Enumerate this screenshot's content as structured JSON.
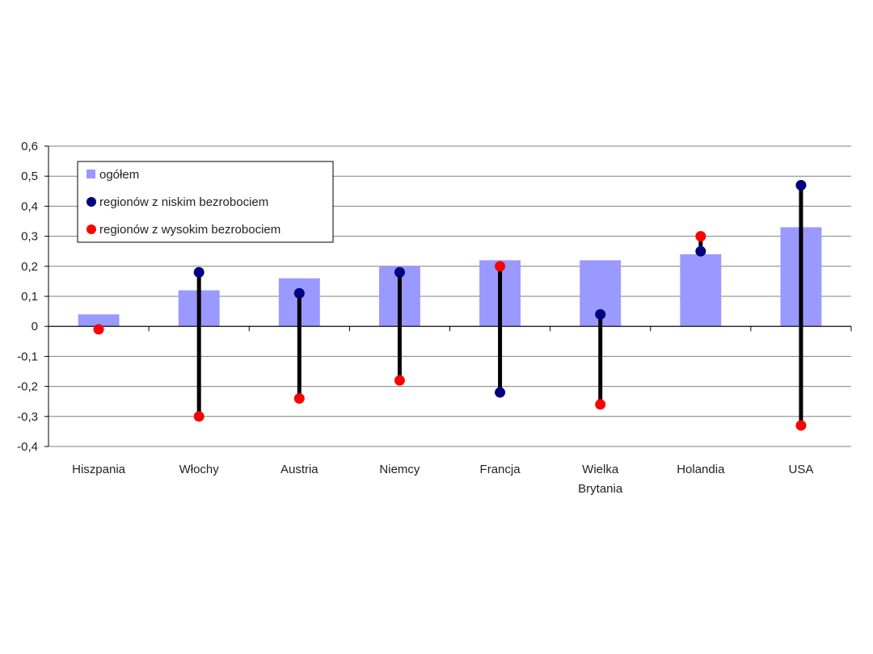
{
  "chart_data": {
    "type": "bar",
    "categories": [
      [
        "Hiszpania"
      ],
      [
        "Włochy"
      ],
      [
        "Austria"
      ],
      [
        "Niemcy"
      ],
      [
        "Francja"
      ],
      [
        "Wielka",
        "Brytania"
      ],
      [
        "Holandia"
      ],
      [
        "USA"
      ]
    ],
    "series": [
      {
        "name": "ogółem",
        "kind": "bar",
        "color": "#9999ff",
        "values": [
          0.04,
          0.12,
          0.16,
          0.2,
          0.22,
          0.22,
          0.24,
          0.33
        ]
      },
      {
        "name": "regionów z niskim bezrobociem",
        "kind": "marker",
        "color": "#000080",
        "values": [
          null,
          0.18,
          0.11,
          0.18,
          -0.22,
          0.04,
          0.25,
          0.47
        ]
      },
      {
        "name": "regionów z wysokim bezrobociem",
        "kind": "marker",
        "color": "#ff0000",
        "values": [
          -0.01,
          -0.3,
          -0.24,
          -0.18,
          0.2,
          -0.26,
          0.3,
          -0.33
        ]
      }
    ],
    "range_lines": {
      "color": "#000000"
    },
    "ylim": [
      -0.4,
      0.6
    ],
    "yticks": [
      0.6,
      0.5,
      0.4,
      0.3,
      0.2,
      0.1,
      0,
      -0.1,
      -0.2,
      -0.3,
      -0.4
    ],
    "ytick_labels": [
      "0,6",
      "0,5",
      "0,4",
      "0,3",
      "0,2",
      "0,1",
      "0",
      "-0,1",
      "-0,2",
      "-0,3",
      "-0,4"
    ],
    "grid": true,
    "legend_position": "top-left",
    "title": "",
    "xlabel": "",
    "ylabel": ""
  }
}
